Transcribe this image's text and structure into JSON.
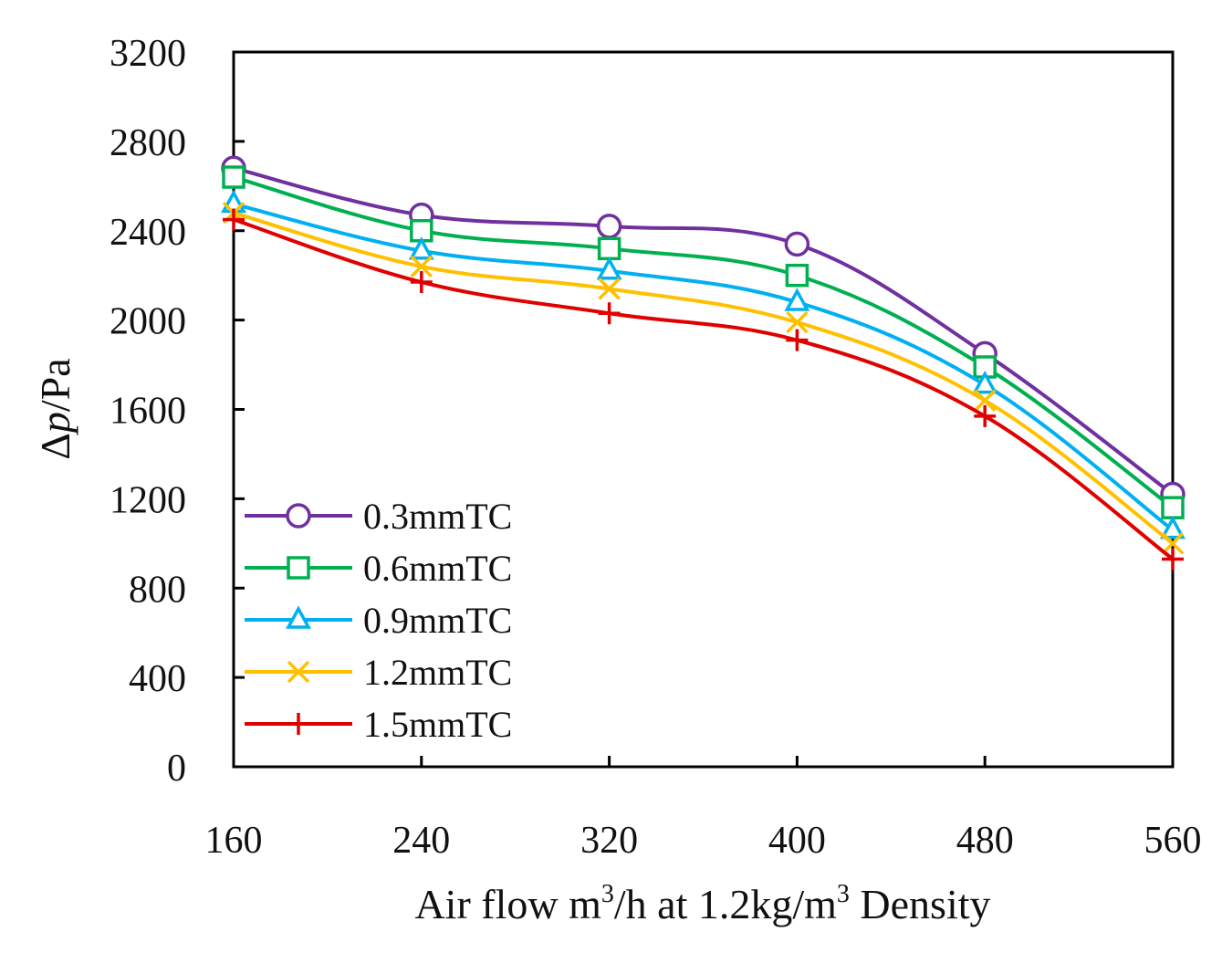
{
  "chart_data": {
    "type": "line",
    "title": "",
    "xlabel_prefix": "Air flow  m",
    "xlabel_sup1": "3",
    "xlabel_mid": "/h at 1.2kg/m",
    "xlabel_sup2": "3",
    "xlabel_suffix": " Density",
    "ylabel_prefix": "Δ",
    "ylabel_italic": "p",
    "ylabel_suffix": "/Pa",
    "x": [
      160,
      240,
      320,
      400,
      480,
      560
    ],
    "xlim": [
      160,
      560
    ],
    "ylim": [
      0,
      3200
    ],
    "yticks": [
      0,
      400,
      800,
      1200,
      1600,
      2000,
      2400,
      2800,
      3200
    ],
    "xticks": [
      160,
      240,
      320,
      400,
      480,
      560
    ],
    "grid": false,
    "legend_position": "bottom-left",
    "series": [
      {
        "name": "0.3mmTC",
        "marker": "circle",
        "color": "#7030A0",
        "values": [
          2680,
          2470,
          2420,
          2340,
          1850,
          1220
        ]
      },
      {
        "name": "0.6mmTC",
        "marker": "square",
        "color": "#00B050",
        "values": [
          2640,
          2400,
          2320,
          2200,
          1790,
          1160
        ]
      },
      {
        "name": "0.9mmTC",
        "marker": "triangle",
        "color": "#00B0F0",
        "values": [
          2520,
          2310,
          2220,
          2080,
          1710,
          1060
        ]
      },
      {
        "name": "1.2mmTC",
        "marker": "x",
        "color": "#FFC000",
        "values": [
          2480,
          2240,
          2140,
          1990,
          1640,
          1000
        ]
      },
      {
        "name": "1.5mmTC",
        "marker": "plus",
        "color": "#E00000",
        "values": [
          2450,
          2170,
          2030,
          1910,
          1570,
          930
        ]
      }
    ]
  }
}
